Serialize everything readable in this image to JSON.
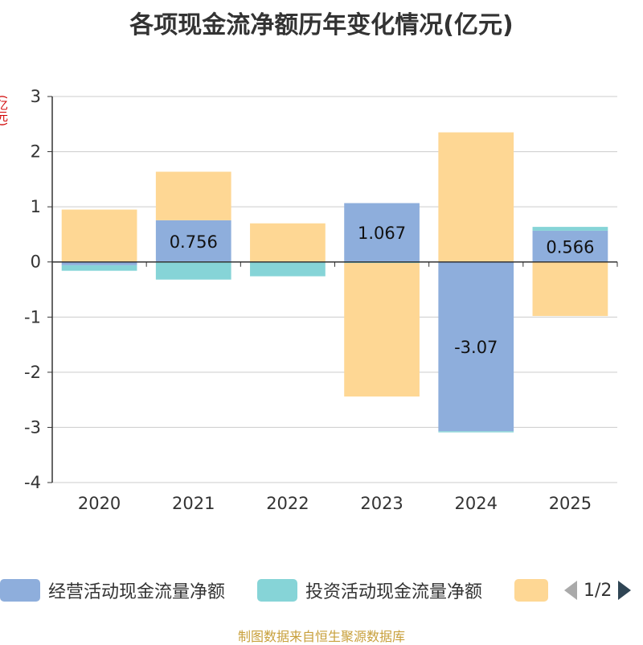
{
  "title": "各项现金流净额历年变化情况(亿元)",
  "unit_label": "(亿元)",
  "source": "制图数据来自恒生聚源数据库",
  "colors": {
    "operating": "#8eaedc",
    "investing": "#86d4d7",
    "financing": "#fed794",
    "axis": "#333333",
    "grid": "#cccccc"
  },
  "legend": {
    "items": [
      {
        "label": "经营活动现金流量净额",
        "color": "#8eaedc"
      },
      {
        "label": "投资活动现金流量净额",
        "color": "#86d4d7"
      },
      {
        "label": "",
        "color": "#fed794"
      }
    ],
    "page": "1/2"
  },
  "chart_data": {
    "type": "bar",
    "stacked": true,
    "categories": [
      "2020",
      "2021",
      "2022",
      "2023",
      "2024",
      "2025"
    ],
    "ylim": [
      -4,
      3
    ],
    "yticks": [
      3,
      2,
      1,
      0,
      -1,
      -2,
      -3,
      -4
    ],
    "grid": true,
    "legend_position": "bottom",
    "series": [
      {
        "name": "经营活动现金流量净额",
        "color": "#8eaedc",
        "values": [
          -0.06,
          0.756,
          -0.01,
          1.067,
          -3.07,
          0.566
        ],
        "labels": [
          "",
          "0.756",
          "",
          "1.067",
          "-3.07",
          "0.566"
        ]
      },
      {
        "name": "投资活动现金流量净额",
        "color": "#86d4d7",
        "values": [
          -0.1,
          -0.32,
          -0.25,
          -0.02,
          -0.02,
          0.07
        ],
        "labels": [
          "",
          "",
          "",
          "",
          "",
          ""
        ]
      },
      {
        "color": "#fed794",
        "values": [
          0.95,
          0.88,
          0.7,
          -2.42,
          2.35,
          -0.98
        ],
        "labels": [
          "",
          "",
          "",
          "",
          "",
          ""
        ]
      }
    ]
  }
}
